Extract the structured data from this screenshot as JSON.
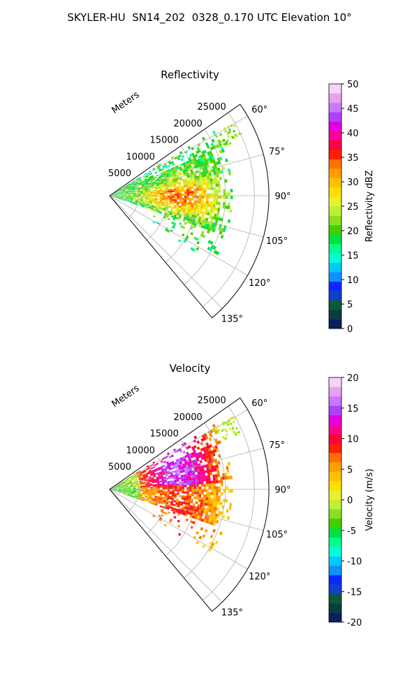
{
  "figure": {
    "suptitle": "SKYLER-HU  SN14_202  0328_0.170 UTC Elevation 10°"
  },
  "chart_data": [
    {
      "type": "heatmap",
      "subtype": "polar-sector (PPI radar)",
      "title": "Reflectivity",
      "radial_label": "Meters",
      "theta_ticks": [
        "60°",
        "75°",
        "90°",
        "105°",
        "120°",
        "135°"
      ],
      "theta_range_deg": [
        55,
        140
      ],
      "range_ticks": [
        "5000",
        "10000",
        "15000",
        "20000",
        "25000"
      ],
      "range_limit_m": 27500,
      "colorbar": {
        "label": "Reflectivity dBZ",
        "ticks": [
          "0",
          "5",
          "10",
          "15",
          "20",
          "25",
          "30",
          "35",
          "40",
          "45",
          "50"
        ],
        "range": [
          0,
          50
        ],
        "colors": [
          "#082060",
          "#0a3d3d",
          "#0b5a3a",
          "#1040c8",
          "#0a28ff",
          "#1090ff",
          "#00c8ff",
          "#00ffd8",
          "#00ff90",
          "#00e040",
          "#40d000",
          "#88e020",
          "#c0f030",
          "#e8f030",
          "#ffe000",
          "#ffc000",
          "#ffa000",
          "#ff7000",
          "#ff2000",
          "#ff0040",
          "#ff0090",
          "#e000e0",
          "#b040ff",
          "#c878ff",
          "#e8a0f0",
          "#f8d0f8"
        ]
      },
      "grid": true
    },
    {
      "type": "heatmap",
      "subtype": "polar-sector (PPI radar)",
      "title": "Velocity",
      "radial_label": "Meters",
      "theta_ticks": [
        "60°",
        "75°",
        "90°",
        "105°",
        "120°",
        "135°"
      ],
      "theta_range_deg": [
        55,
        140
      ],
      "range_ticks": [
        "5000",
        "10000",
        "15000",
        "20000",
        "25000"
      ],
      "range_limit_m": 27500,
      "colorbar": {
        "label": "Velocity (m/s)",
        "ticks": [
          "-20",
          "-15",
          "-10",
          "-5",
          "0",
          "5",
          "10",
          "15",
          "20"
        ],
        "range": [
          -20,
          20
        ],
        "colors": [
          "#082060",
          "#0a3d3d",
          "#0b5a3a",
          "#1040c8",
          "#0a28ff",
          "#1090ff",
          "#00c8ff",
          "#00ffd8",
          "#00ff90",
          "#00e040",
          "#40d000",
          "#88e020",
          "#c0f030",
          "#e8f030",
          "#ffe000",
          "#ffc000",
          "#ffa000",
          "#ff7000",
          "#ff2000",
          "#ff0040",
          "#ff0090",
          "#e000e0",
          "#b040ff",
          "#c878ff",
          "#e8a0f0",
          "#f8d0f8"
        ]
      },
      "grid": true
    }
  ]
}
